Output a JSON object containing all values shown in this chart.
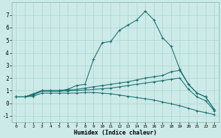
{
  "xlabel": "Humidex (Indice chaleur)",
  "bg_color": "#cceae8",
  "grid_color": "#aad4d2",
  "line_color": "#1a7070",
  "x_ticks": [
    0,
    1,
    2,
    3,
    4,
    5,
    6,
    7,
    8,
    9,
    10,
    11,
    12,
    13,
    14,
    15,
    16,
    17,
    18,
    19,
    20,
    21,
    22,
    23
  ],
  "ylim": [
    -1.5,
    8.0
  ],
  "xlim": [
    -0.5,
    23.5
  ],
  "yticks": [
    -1,
    0,
    1,
    2,
    3,
    4,
    5,
    6,
    7
  ],
  "line1_x": [
    0,
    1,
    2,
    3,
    4,
    5,
    6,
    7,
    8,
    9,
    10,
    11,
    12,
    13,
    14,
    15,
    16,
    17,
    18,
    19,
    20,
    21,
    22,
    23
  ],
  "line1_y": [
    0.5,
    0.5,
    0.75,
    1.0,
    1.0,
    1.0,
    1.1,
    1.4,
    1.5,
    3.5,
    4.8,
    4.9,
    5.8,
    6.2,
    6.6,
    7.3,
    6.6,
    5.2,
    4.5,
    2.7,
    1.5,
    0.8,
    0.5,
    -0.5
  ],
  "line2_x": [
    0,
    1,
    2,
    3,
    4,
    5,
    6,
    7,
    8,
    9,
    10,
    11,
    12,
    13,
    14,
    15,
    16,
    17,
    18,
    19,
    20,
    21,
    22,
    23
  ],
  "line2_y": [
    0.5,
    0.5,
    0.7,
    1.0,
    1.0,
    1.0,
    1.05,
    1.1,
    1.2,
    1.3,
    1.4,
    1.5,
    1.6,
    1.7,
    1.85,
    2.0,
    2.1,
    2.2,
    2.5,
    2.6,
    1.5,
    0.8,
    0.5,
    -0.5
  ],
  "line3_x": [
    0,
    1,
    2,
    3,
    4,
    5,
    6,
    7,
    8,
    9,
    10,
    11,
    12,
    13,
    14,
    15,
    16,
    17,
    18,
    19,
    20,
    21,
    22,
    23
  ],
  "line3_y": [
    0.5,
    0.5,
    0.65,
    0.95,
    0.95,
    0.95,
    0.98,
    1.0,
    1.05,
    1.1,
    1.15,
    1.2,
    1.3,
    1.4,
    1.5,
    1.6,
    1.7,
    1.8,
    1.9,
    2.0,
    1.1,
    0.5,
    0.2,
    -0.6
  ],
  "line4_x": [
    0,
    1,
    2,
    3,
    4,
    5,
    6,
    7,
    8,
    9,
    10,
    11,
    12,
    13,
    14,
    15,
    16,
    17,
    18,
    19,
    20,
    21,
    22,
    23
  ],
  "line4_y": [
    0.5,
    0.5,
    0.55,
    0.8,
    0.8,
    0.8,
    0.8,
    0.8,
    0.85,
    0.85,
    0.8,
    0.75,
    0.65,
    0.55,
    0.45,
    0.35,
    0.25,
    0.1,
    -0.05,
    -0.2,
    -0.4,
    -0.6,
    -0.75,
    -0.9
  ]
}
